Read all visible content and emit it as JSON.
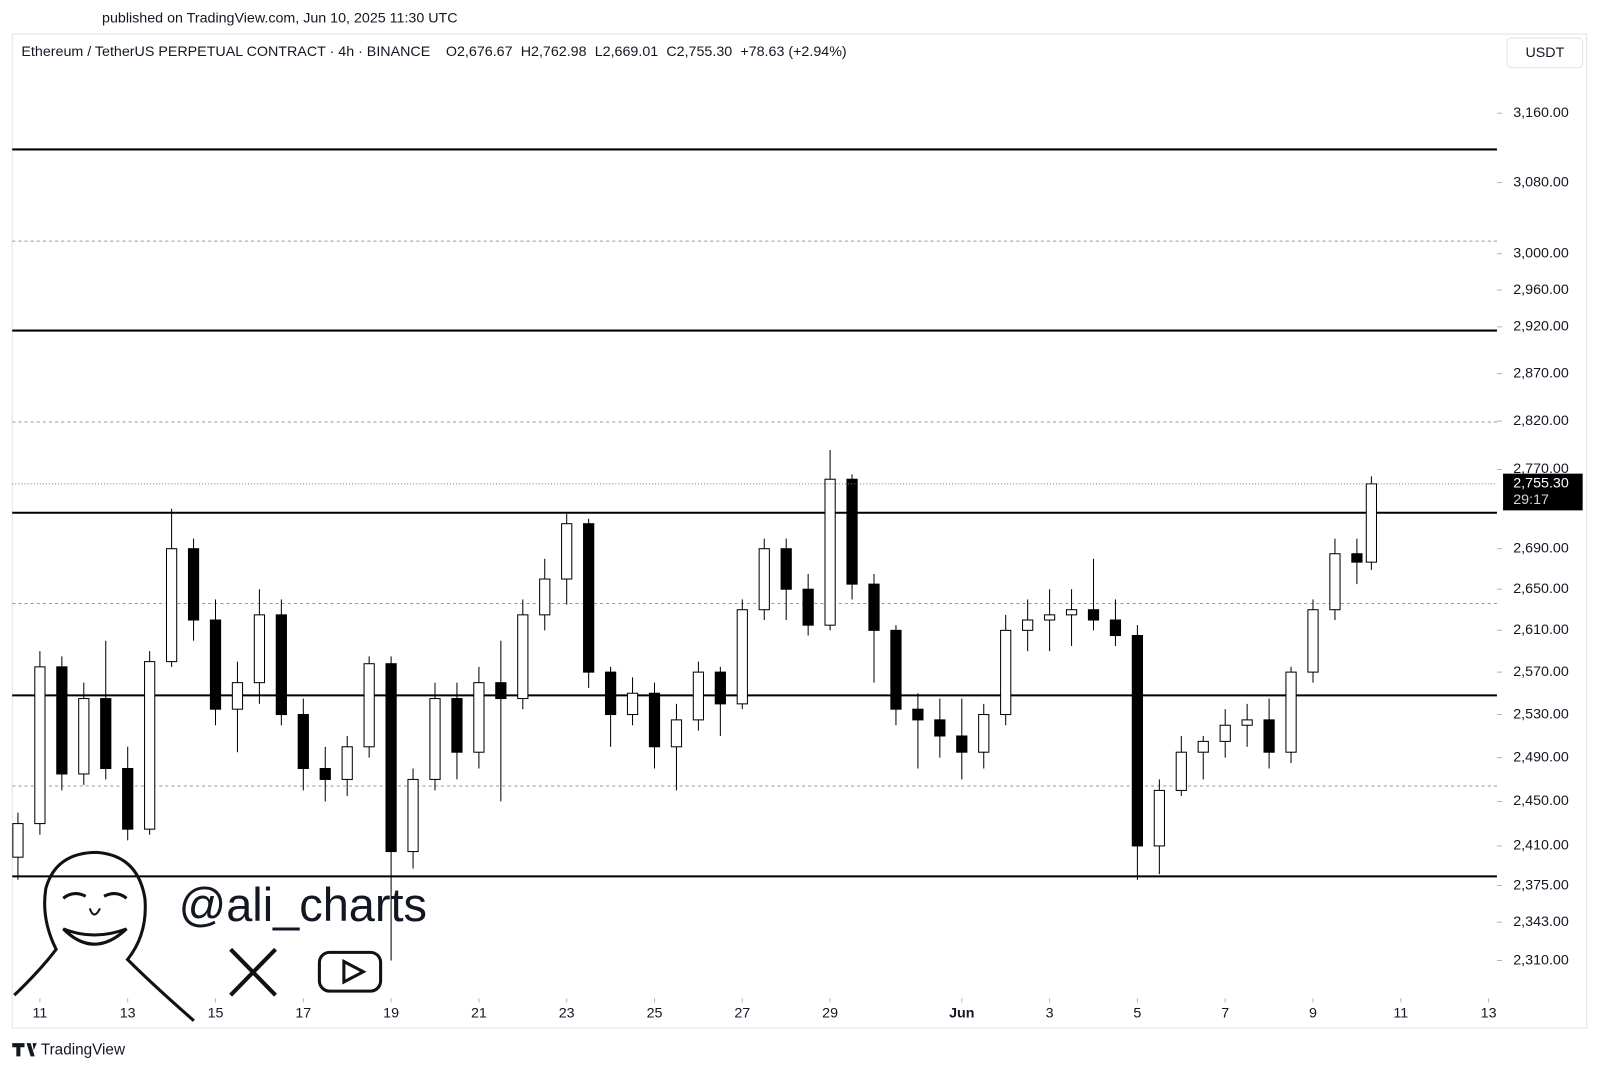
{
  "chart_data": {
    "type": "candlestick",
    "published": "published on TradingView.com, Jun 10, 2025 11:30 UTC",
    "symbol": "Ethereum / TetherUS PERPETUAL CONTRACT · 4h · BINANCE",
    "ohlc": [
      "O2,676.67",
      "H2,762.98",
      "L2,669.01",
      "C2,755.30",
      "+78.63 (+2.94%)"
    ],
    "currency": "USDT",
    "watermark": "@ali_charts",
    "footer": "TradingView",
    "last_label": "2,755.30",
    "countdown": "29:17",
    "log_scale": true,
    "up_color": "#ffffff",
    "down_color": "#000000",
    "ylim": [
      2278,
      3254
    ],
    "yticks": [
      {
        "value": 3160,
        "label": "3,160.00"
      },
      {
        "value": 3080,
        "label": "3,080.00"
      },
      {
        "value": 3000,
        "label": "3,000.00"
      },
      {
        "value": 2960,
        "label": "2,960.00"
      },
      {
        "value": 2920,
        "label": "2,920.00"
      },
      {
        "value": 2870,
        "label": "2,870.00"
      },
      {
        "value": 2820,
        "label": "2,820.00"
      },
      {
        "value": 2770,
        "label": "2,770.00"
      },
      {
        "value": 2690,
        "label": "2,690.00"
      },
      {
        "value": 2650,
        "label": "2,650.00"
      },
      {
        "value": 2610,
        "label": "2,610.00"
      },
      {
        "value": 2570,
        "label": "2,570.00"
      },
      {
        "value": 2530,
        "label": "2,530.00"
      },
      {
        "value": 2490,
        "label": "2,490.00"
      },
      {
        "value": 2450,
        "label": "2,450.00"
      },
      {
        "value": 2410,
        "label": "2,410.00"
      },
      {
        "value": 2375,
        "label": "2,375.00"
      },
      {
        "value": 2343,
        "label": "2,343.00"
      },
      {
        "value": 2310,
        "label": "2,310.00"
      }
    ],
    "xlim": [
      10.37,
      44.19
    ],
    "xticks": [
      11,
      13,
      15,
      17,
      19,
      21,
      23,
      25,
      27,
      29,
      {
        "value": 32,
        "label": "Jun"
      },
      {
        "value": 34,
        "label": "3"
      },
      {
        "value": 36,
        "label": "5"
      },
      {
        "value": 38,
        "label": "7"
      },
      {
        "value": 40,
        "label": "9"
      },
      {
        "value": 42,
        "label": "11"
      },
      {
        "value": 44,
        "label": "13"
      }
    ],
    "levels": [
      {
        "value": 3118,
        "style": "solid"
      },
      {
        "value": 3014,
        "style": "dashed"
      },
      {
        "value": 2916,
        "style": "solid"
      },
      {
        "value": 2819,
        "style": "dashed"
      },
      {
        "value": 2726,
        "style": "solid"
      },
      {
        "value": 2636,
        "style": "dashed"
      },
      {
        "value": 2548,
        "style": "solid"
      },
      {
        "value": 2464,
        "style": "dashed"
      },
      {
        "value": 2383,
        "style": "solid"
      }
    ],
    "candles": [
      {
        "x": 10.5,
        "o": 2400,
        "h": 2440,
        "l": 2380,
        "c": 2430
      },
      {
        "x": 11,
        "o": 2430,
        "h": 2590,
        "l": 2420,
        "c": 2575
      },
      {
        "x": 11.5,
        "o": 2575,
        "h": 2585,
        "l": 2460,
        "c": 2475
      },
      {
        "x": 12,
        "o": 2475,
        "h": 2560,
        "l": 2465,
        "c": 2545
      },
      {
        "x": 12.5,
        "o": 2545,
        "h": 2600,
        "l": 2470,
        "c": 2480
      },
      {
        "x": 13,
        "o": 2480,
        "h": 2500,
        "l": 2415,
        "c": 2425
      },
      {
        "x": 13.5,
        "o": 2425,
        "h": 2590,
        "l": 2420,
        "c": 2580
      },
      {
        "x": 14,
        "o": 2580,
        "h": 2730,
        "l": 2575,
        "c": 2690
      },
      {
        "x": 14.5,
        "o": 2690,
        "h": 2700,
        "l": 2600,
        "c": 2620
      },
      {
        "x": 15,
        "o": 2620,
        "h": 2640,
        "l": 2520,
        "c": 2535
      },
      {
        "x": 15.5,
        "o": 2535,
        "h": 2580,
        "l": 2495,
        "c": 2560
      },
      {
        "x": 16,
        "o": 2560,
        "h": 2650,
        "l": 2540,
        "c": 2625
      },
      {
        "x": 16.5,
        "o": 2625,
        "h": 2640,
        "l": 2520,
        "c": 2530
      },
      {
        "x": 17,
        "o": 2530,
        "h": 2545,
        "l": 2460,
        "c": 2480
      },
      {
        "x": 17.5,
        "o": 2480,
        "h": 2500,
        "l": 2450,
        "c": 2470
      },
      {
        "x": 18,
        "o": 2470,
        "h": 2510,
        "l": 2455,
        "c": 2500
      },
      {
        "x": 18.5,
        "o": 2500,
        "h": 2585,
        "l": 2490,
        "c": 2578
      },
      {
        "x": 19,
        "o": 2578,
        "h": 2585,
        "l": 2310,
        "c": 2405
      },
      {
        "x": 19.5,
        "o": 2405,
        "h": 2480,
        "l": 2390,
        "c": 2470
      },
      {
        "x": 20,
        "o": 2470,
        "h": 2560,
        "l": 2460,
        "c": 2545
      },
      {
        "x": 20.5,
        "o": 2545,
        "h": 2560,
        "l": 2470,
        "c": 2495
      },
      {
        "x": 21,
        "o": 2495,
        "h": 2575,
        "l": 2480,
        "c": 2560
      },
      {
        "x": 21.5,
        "o": 2560,
        "h": 2600,
        "l": 2450,
        "c": 2545
      },
      {
        "x": 22,
        "o": 2545,
        "h": 2640,
        "l": 2535,
        "c": 2625
      },
      {
        "x": 22.5,
        "o": 2625,
        "h": 2680,
        "l": 2610,
        "c": 2660
      },
      {
        "x": 23,
        "o": 2660,
        "h": 2725,
        "l": 2635,
        "c": 2715
      },
      {
        "x": 23.5,
        "o": 2715,
        "h": 2720,
        "l": 2555,
        "c": 2570
      },
      {
        "x": 24,
        "o": 2570,
        "h": 2575,
        "l": 2500,
        "c": 2530
      },
      {
        "x": 24.5,
        "o": 2530,
        "h": 2565,
        "l": 2520,
        "c": 2550
      },
      {
        "x": 25,
        "o": 2550,
        "h": 2560,
        "l": 2480,
        "c": 2500
      },
      {
        "x": 25.5,
        "o": 2500,
        "h": 2540,
        "l": 2460,
        "c": 2525
      },
      {
        "x": 26,
        "o": 2525,
        "h": 2580,
        "l": 2515,
        "c": 2570
      },
      {
        "x": 26.5,
        "o": 2570,
        "h": 2575,
        "l": 2510,
        "c": 2540
      },
      {
        "x": 27,
        "o": 2540,
        "h": 2640,
        "l": 2535,
        "c": 2630
      },
      {
        "x": 27.5,
        "o": 2630,
        "h": 2700,
        "l": 2620,
        "c": 2690
      },
      {
        "x": 28,
        "o": 2690,
        "h": 2700,
        "l": 2620,
        "c": 2650
      },
      {
        "x": 28.5,
        "o": 2650,
        "h": 2665,
        "l": 2605,
        "c": 2615
      },
      {
        "x": 29,
        "o": 2615,
        "h": 2790,
        "l": 2610,
        "c": 2760
      },
      {
        "x": 29.5,
        "o": 2760,
        "h": 2765,
        "l": 2640,
        "c": 2655
      },
      {
        "x": 30,
        "o": 2655,
        "h": 2665,
        "l": 2560,
        "c": 2610
      },
      {
        "x": 30.5,
        "o": 2610,
        "h": 2615,
        "l": 2520,
        "c": 2535
      },
      {
        "x": 31,
        "o": 2535,
        "h": 2550,
        "l": 2480,
        "c": 2525
      },
      {
        "x": 31.5,
        "o": 2525,
        "h": 2545,
        "l": 2490,
        "c": 2510
      },
      {
        "x": 32,
        "o": 2510,
        "h": 2545,
        "l": 2470,
        "c": 2495
      },
      {
        "x": 32.5,
        "o": 2495,
        "h": 2540,
        "l": 2480,
        "c": 2530
      },
      {
        "x": 33,
        "o": 2530,
        "h": 2625,
        "l": 2520,
        "c": 2610
      },
      {
        "x": 33.5,
        "o": 2610,
        "h": 2640,
        "l": 2590,
        "c": 2620
      },
      {
        "x": 34,
        "o": 2620,
        "h": 2650,
        "l": 2590,
        "c": 2625
      },
      {
        "x": 34.5,
        "o": 2625,
        "h": 2650,
        "l": 2595,
        "c": 2630
      },
      {
        "x": 35,
        "o": 2630,
        "h": 2680,
        "l": 2610,
        "c": 2620
      },
      {
        "x": 35.5,
        "o": 2620,
        "h": 2640,
        "l": 2595,
        "c": 2605
      },
      {
        "x": 36,
        "o": 2605,
        "h": 2615,
        "l": 2380,
        "c": 2410
      },
      {
        "x": 36.5,
        "o": 2410,
        "h": 2470,
        "l": 2385,
        "c": 2460
      },
      {
        "x": 37,
        "o": 2460,
        "h": 2510,
        "l": 2455,
        "c": 2495
      },
      {
        "x": 37.5,
        "o": 2495,
        "h": 2510,
        "l": 2470,
        "c": 2505
      },
      {
        "x": 38,
        "o": 2505,
        "h": 2535,
        "l": 2490,
        "c": 2520
      },
      {
        "x": 38.5,
        "o": 2520,
        "h": 2540,
        "l": 2500,
        "c": 2525
      },
      {
        "x": 39,
        "o": 2525,
        "h": 2545,
        "l": 2480,
        "c": 2495
      },
      {
        "x": 39.5,
        "o": 2495,
        "h": 2575,
        "l": 2485,
        "c": 2570
      },
      {
        "x": 40,
        "o": 2570,
        "h": 2640,
        "l": 2560,
        "c": 2630
      },
      {
        "x": 40.5,
        "o": 2630,
        "h": 2700,
        "l": 2620,
        "c": 2685
      },
      {
        "x": 41,
        "o": 2685,
        "h": 2700,
        "l": 2655,
        "c": 2676.67
      },
      {
        "x": 41.33,
        "o": 2676.67,
        "h": 2762.98,
        "l": 2669.01,
        "c": 2755.3
      }
    ]
  }
}
